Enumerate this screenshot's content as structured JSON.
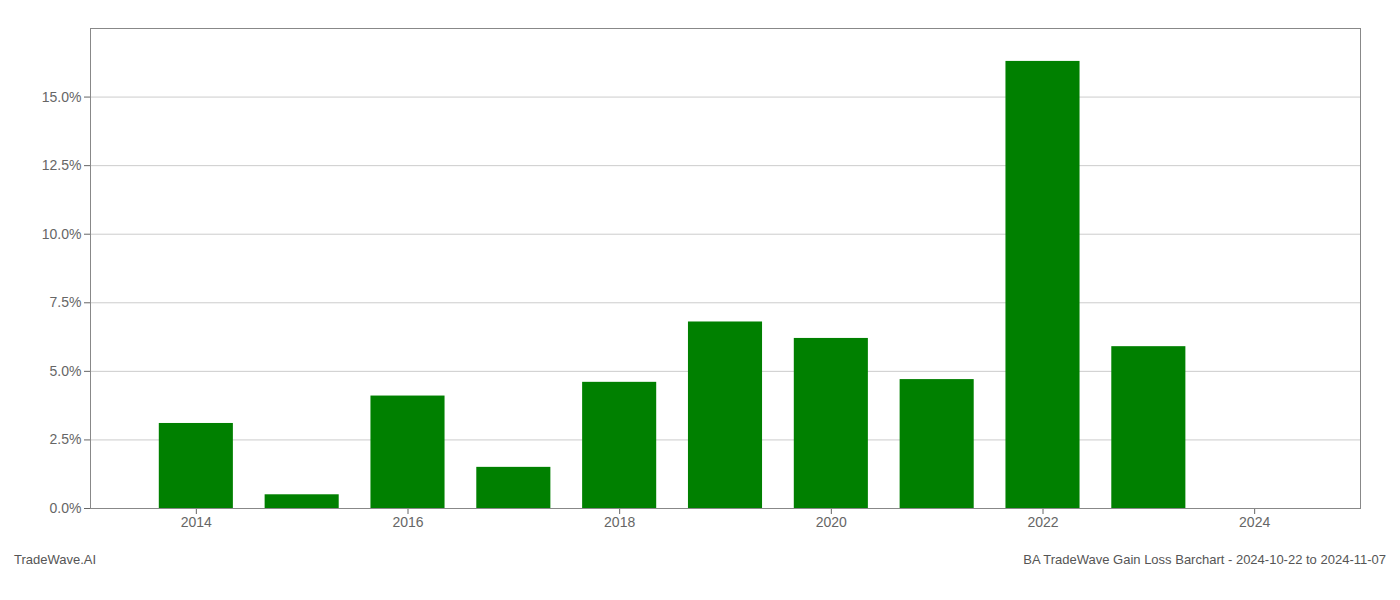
{
  "chart_data": {
    "type": "bar",
    "title": "BA TradeWave Gain Loss Barchart - 2024-10-22 to 2024-11-07",
    "annotations": [
      "TradeWave.AI"
    ],
    "x": [
      2014,
      2015,
      2016,
      2017,
      2018,
      2019,
      2020,
      2021,
      2022,
      2023,
      2024
    ],
    "values": [
      0.031,
      0.005,
      0.041,
      0.015,
      0.046,
      0.068,
      0.062,
      0.047,
      0.163,
      0.059,
      0.0
    ],
    "color": "#008000",
    "xlim": [
      2013,
      2025
    ],
    "xticks": [
      2014,
      2016,
      2018,
      2020,
      2022,
      2024
    ],
    "ylim": [
      0,
      0.175
    ],
    "yticks": [
      {
        "value": 0.0,
        "label": "0.0%"
      },
      {
        "value": 0.025,
        "label": "2.5%"
      },
      {
        "value": 0.05,
        "label": "5.0%"
      },
      {
        "value": 0.075,
        "label": "7.5%"
      },
      {
        "value": 0.1,
        "label": "10.0%"
      },
      {
        "value": 0.125,
        "label": "12.5%"
      },
      {
        "value": 0.15,
        "label": "15.0%"
      }
    ],
    "grid": true
  }
}
